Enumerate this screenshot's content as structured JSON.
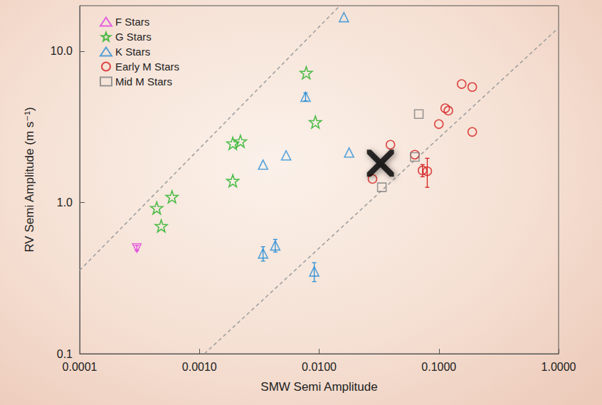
{
  "chart_data": {
    "type": "scatter",
    "x_label": "SMW Semi Amplitude",
    "y_label": "RV Semi Amplitude (m s⁻¹)",
    "log": true,
    "grid": false,
    "legend": "upper left",
    "xlim": [
      0.0001,
      1
    ],
    "xticks": [
      {
        "value": 0.0001,
        "label": "0.0001"
      },
      {
        "value": 0.001,
        "label": "0.0010"
      },
      {
        "value": 0.01,
        "label": "0.0100"
      },
      {
        "value": 0.1,
        "label": "0.1000"
      },
      {
        "value": 1,
        "label": "1.0000"
      }
    ],
    "ylim": [
      0.1,
      20
    ],
    "yticks": [
      0.1,
      {
        "value": 1,
        "label": "1.0"
      },
      {
        "value": 10,
        "label": "10.0"
      }
    ],
    "series": [
      {
        "name": "F Stars",
        "color": "#e040e0",
        "marker": "triangle-down",
        "x": [
          0.0003
        ],
        "values": [
          0.5
        ],
        "y_err": [
          0.02
        ]
      },
      {
        "name": "G Stars",
        "color": "#22b022",
        "marker": "star",
        "x": [
          0.00044,
          0.00048,
          0.00059,
          0.0019,
          0.0019,
          0.0022,
          0.0078,
          0.0093
        ],
        "values": [
          0.92,
          0.7,
          1.09,
          1.39,
          2.46,
          2.54,
          7.2,
          3.4
        ],
        "y_err": [
          null,
          null,
          null,
          null,
          null,
          null,
          null,
          null
        ]
      },
      {
        "name": "K Stars",
        "color": "#2a8fd8",
        "marker": "triangle",
        "x": [
          0.0161,
          0.0077,
          0.0034,
          0.0053,
          0.0178,
          0.0034,
          0.0043,
          0.0091
        ],
        "values": [
          16.8,
          5.0,
          1.78,
          2.05,
          2.14,
          0.46,
          0.52,
          0.35
        ],
        "y_err": [
          null,
          0.3,
          null,
          null,
          null,
          0.05,
          0.05,
          0.05
        ]
      },
      {
        "name": "Early M Stars",
        "color": "#d42020",
        "marker": "circle",
        "x": [
          0.0394,
          0.0279,
          0.063,
          0.073,
          0.08,
          0.1,
          0.113,
          0.12,
          0.155,
          0.19,
          0.19
        ],
        "values": [
          2.41,
          1.43,
          2.07,
          1.63,
          1.61,
          3.3,
          4.2,
          4.05,
          6.07,
          5.8,
          2.93
        ],
        "y_err": [
          null,
          null,
          null,
          0.15,
          0.35,
          null,
          null,
          null,
          null,
          null,
          null
        ]
      },
      {
        "name": "Mid M Stars",
        "color": "#808080",
        "marker": "square",
        "x": [
          0.0334,
          0.063,
          0.068
        ],
        "values": [
          1.26,
          2.0,
          3.84
        ],
        "y_err": [
          null,
          null,
          null
        ]
      }
    ],
    "fit_lines": [
      {
        "x": [
          0.0001,
          0.0149
        ],
        "y": [
          0.356,
          20
        ],
        "color": "#a0a0a0",
        "line_style": "dashed"
      },
      {
        "x": [
          0.0011,
          1
        ],
        "y": [
          0.1,
          14.3
        ],
        "color": "#a0a0a0",
        "line_style": "dashed"
      }
    ],
    "highlight": {
      "x": 0.0325,
      "y": 1.82,
      "marker": "x",
      "color": "#000000"
    }
  }
}
